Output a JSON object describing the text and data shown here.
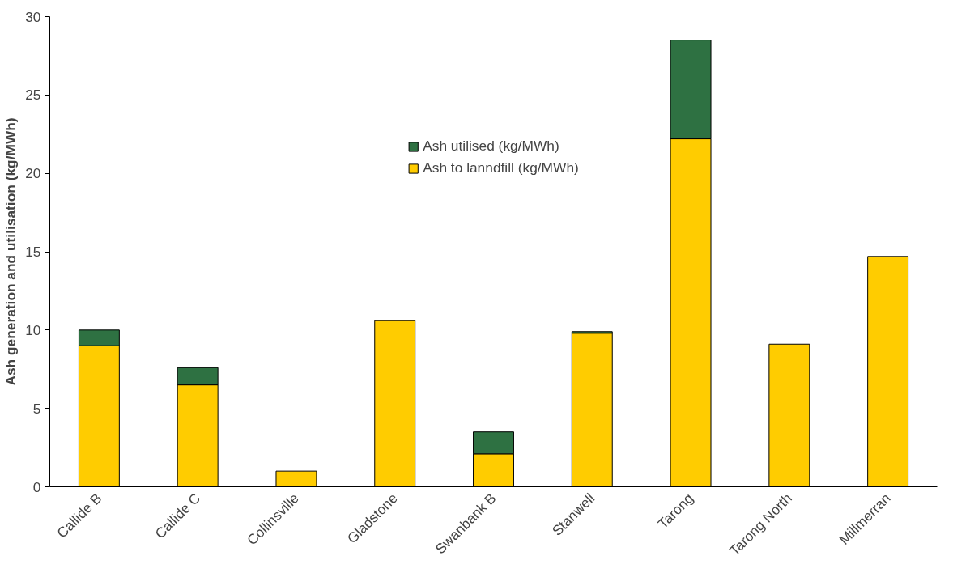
{
  "chart_data": {
    "type": "bar",
    "stacked": true,
    "ylabel": "Ash generation and utilisation (kg/MWh)",
    "categories": [
      "Callide B",
      "Callide C",
      "Collinsville",
      "Gladstone",
      "Swanbank B",
      "Stanwell",
      "Tarong",
      "Tarong North",
      "Millmerran"
    ],
    "series": [
      {
        "name": "Ash to lanndfill (kg/MWh)",
        "color": "#ffcc00",
        "values": [
          9.0,
          6.5,
          1.0,
          10.6,
          2.1,
          9.8,
          22.2,
          9.1,
          14.7
        ]
      },
      {
        "name": "Ash utilised (kg/MWh)",
        "color": "#2e7142",
        "values": [
          1.0,
          1.1,
          0,
          0,
          1.4,
          0.1,
          6.3,
          0,
          0
        ]
      }
    ],
    "ylim": [
      0,
      30
    ],
    "yticks": [
      0,
      5,
      10,
      15,
      20,
      25,
      30
    ],
    "grid": false,
    "legend": "top"
  }
}
